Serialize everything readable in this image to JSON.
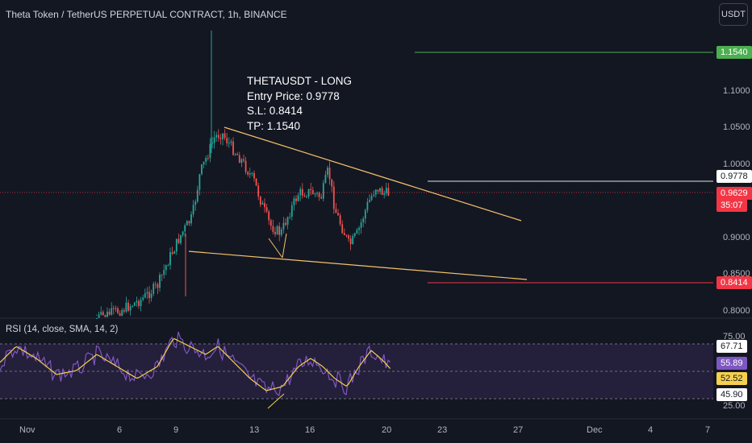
{
  "header": {
    "title": "Theta Token / TetherUS PERPETUAL CONTRACT, 1h, BINANCE",
    "currency_button": "USDT"
  },
  "annotation": {
    "line1": "THETAUSDT - LONG",
    "line2": "Entry Price: 0.9778",
    "line3": "S.L: 0.8414",
    "line4": "TP: 1.1540"
  },
  "price_axis": {
    "ticks": [
      "1.1000",
      "1.0500",
      "1.0000",
      "0.9000",
      "0.8500",
      "0.8000"
    ],
    "tags": {
      "take_profit": "1.1540",
      "entry": "0.9778",
      "current_price": "0.9629",
      "countdown": "35:07",
      "stop_loss": "0.8414"
    }
  },
  "rsi_panel": {
    "label": "RSI (14, close, SMA, 14, 2)",
    "ticks": [
      "75.00",
      "25.00"
    ],
    "tags": {
      "upper_band": "67.71",
      "rsi_value": "55.89",
      "sma_value": "52.52",
      "lower_band": "45.90"
    }
  },
  "time_axis": {
    "labels": [
      "Nov",
      "6",
      "9",
      "13",
      "16",
      "20",
      "23",
      "27",
      "Dec",
      "4",
      "7"
    ]
  },
  "colors": {
    "background": "#131722",
    "up_candle": "#26a69a",
    "down_candle": "#ef5350",
    "trendline": "#f5c26b",
    "take_profit_line": "#4caf50",
    "stop_loss_line": "#f23645",
    "rsi_line": "#7e57c2",
    "rsi_sma": "#f5d04f",
    "rsi_band_fill": "#2a2442"
  }
}
